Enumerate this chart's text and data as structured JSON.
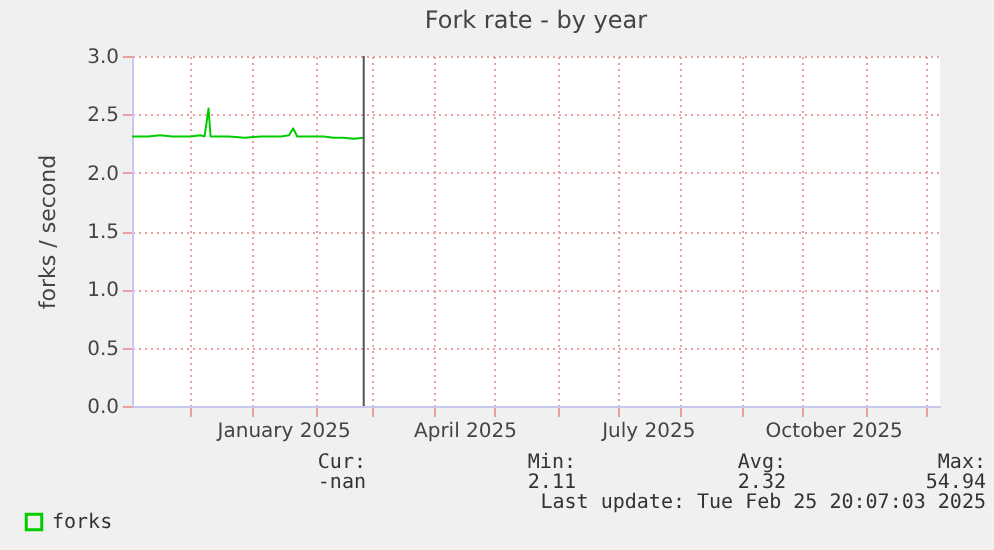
{
  "chart_data": {
    "type": "line",
    "title": "Fork rate - by year",
    "ylabel": "forks / second",
    "x": [
      "2024-11-02",
      "2024-11-10",
      "2024-11-16",
      "2024-11-22",
      "2024-12-01",
      "2024-12-06",
      "2024-12-08",
      "2024-12-10",
      "2024-12-11",
      "2024-12-20",
      "2024-12-28",
      "2025-01-05",
      "2025-01-15",
      "2025-01-19",
      "2025-01-21",
      "2025-01-23",
      "2025-01-30",
      "2025-02-05",
      "2025-02-10",
      "2025-02-15",
      "2025-02-20",
      "2025-02-25"
    ],
    "series": [
      {
        "name": "forks",
        "color": "#00cc00",
        "values": [
          2.31,
          2.31,
          2.32,
          2.31,
          2.31,
          2.32,
          2.31,
          2.55,
          2.31,
          2.31,
          2.3,
          2.31,
          2.31,
          2.32,
          2.38,
          2.31,
          2.31,
          2.31,
          2.3,
          2.3,
          2.29,
          2.3
        ]
      }
    ],
    "xlim": [
      "2024-11-02",
      "2025-12-08"
    ],
    "xticks": [
      {
        "value": "2024-12-01",
        "label": null
      },
      {
        "value": "2025-01-01",
        "label": null
      },
      {
        "value": "2025-01-16",
        "label": "January 2025"
      },
      {
        "value": "2025-02-01",
        "label": null
      },
      {
        "value": "2025-03-01",
        "label": null
      },
      {
        "value": "2025-04-01",
        "label": null
      },
      {
        "value": "2025-04-16",
        "label": "April 2025"
      },
      {
        "value": "2025-05-01",
        "label": null
      },
      {
        "value": "2025-06-01",
        "label": null
      },
      {
        "value": "2025-07-01",
        "label": null
      },
      {
        "value": "2025-07-16",
        "label": "July 2025"
      },
      {
        "value": "2025-08-01",
        "label": null
      },
      {
        "value": "2025-09-01",
        "label": null
      },
      {
        "value": "2025-10-01",
        "label": null
      },
      {
        "value": "2025-10-16",
        "label": "October 2025"
      },
      {
        "value": "2025-11-01",
        "label": null
      },
      {
        "value": "2025-12-01",
        "label": null
      }
    ],
    "ylim": [
      0,
      3
    ],
    "yticks": [
      {
        "value": 0,
        "label": "0.0"
      },
      {
        "value": 0.5,
        "label": "0.5"
      },
      {
        "value": 1,
        "label": "1.0"
      },
      {
        "value": 1.5,
        "label": "1.5"
      },
      {
        "value": 2,
        "label": "2.0"
      },
      {
        "value": 2.5,
        "label": "2.5"
      },
      {
        "value": 3,
        "label": "3.0"
      }
    ],
    "ref_lines": [
      {
        "axis": "x",
        "value": "2025-02-25",
        "color": "#555555"
      }
    ],
    "grid": true,
    "legend": "bottom left",
    "line_style": "solid",
    "marker": "none",
    "annotations": [
      "Cur:",
      "Min:",
      "Avg:",
      "Max:",
      "-nan",
      "2.11",
      "2.32",
      "54.94",
      "Last update: Tue Feb 25 20:07:03 2025"
    ]
  }
}
